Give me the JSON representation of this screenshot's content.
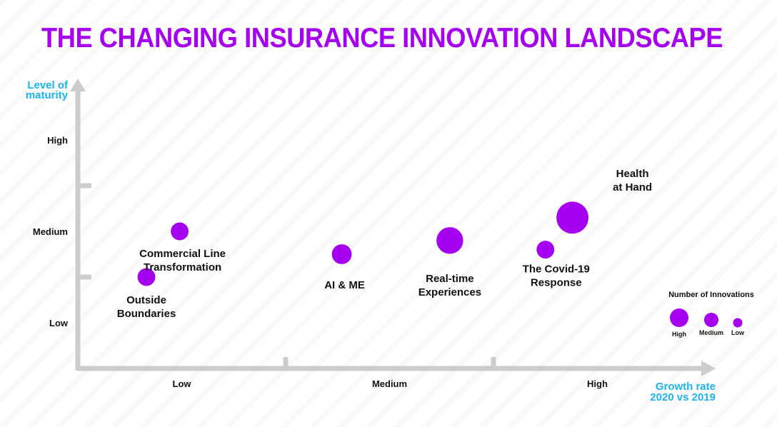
{
  "title": "THE CHANGING INSURANCE INNOVATION LANDSCAPE",
  "colors": {
    "title": "#a600f0",
    "bubble": "#a600f0",
    "axis": "#cccccc",
    "axis_title": "#1ab4ee"
  },
  "chart_data": {
    "type": "scatter",
    "ylabel": [
      "Level of",
      "maturity"
    ],
    "xlabel": [
      "Growth rate",
      "2020 vs 2019"
    ],
    "x_categories": [
      "Low",
      "Medium",
      "High"
    ],
    "y_categories": [
      "Low",
      "Medium",
      "High"
    ],
    "xlim": [
      0,
      3
    ],
    "ylim": [
      0,
      3
    ],
    "size_legend": {
      "title": "Number of Innovations",
      "levels": [
        {
          "label": "High",
          "size": 3
        },
        {
          "label": "Medium",
          "size": 2
        },
        {
          "label": "Low",
          "size": 1
        }
      ]
    },
    "points": [
      {
        "name": [
          "Outside",
          "Boundaries"
        ],
        "x": 0.33,
        "y": 1.0,
        "size": 2
      },
      {
        "name": [
          "Commercial Line",
          "Transformation"
        ],
        "x": 0.49,
        "y": 1.5,
        "size": 2
      },
      {
        "name": [
          "AI & ME"
        ],
        "x": 1.27,
        "y": 1.25,
        "size": 2.5
      },
      {
        "name": [
          "Real-time",
          "Experiences"
        ],
        "x": 1.79,
        "y": 1.4,
        "size": 4.5
      },
      {
        "name": [
          "The Covid-19",
          "Response"
        ],
        "x": 2.25,
        "y": 1.3,
        "size": 2
      },
      {
        "name": [
          "Health",
          "at Hand"
        ],
        "x": 2.38,
        "y": 1.65,
        "size": 6.5
      }
    ]
  }
}
